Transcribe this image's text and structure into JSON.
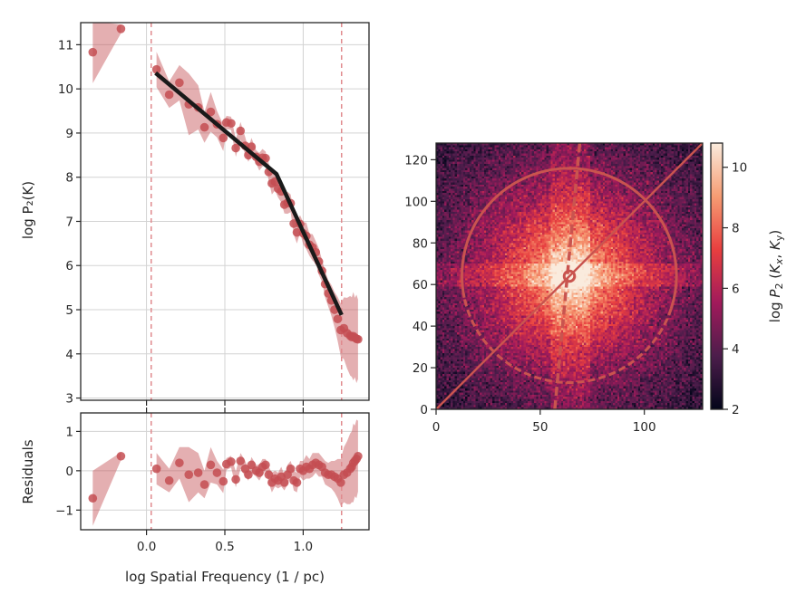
{
  "chart_data": [
    {
      "type": "line",
      "panel": "power-spectrum",
      "ylabel": "log P₂(K)",
      "xlim": [
        -0.42,
        1.42
      ],
      "ylim": [
        2.95,
        11.5
      ],
      "yticks": [
        "3",
        "4",
        "5",
        "6",
        "7",
        "8",
        "9",
        "10",
        "11"
      ],
      "grid": true,
      "vlines_dashed": [
        0.03,
        1.245
      ],
      "colors": {
        "points": "#c44e52",
        "band": "#c44e52",
        "fit": "#1a1a1a",
        "vline": "#e08a8e",
        "grid": "#d3d3d3"
      },
      "points": {
        "x": [
          -0.343,
          -0.163,
          0.064,
          0.145,
          0.21,
          0.27,
          0.33,
          0.37,
          0.41,
          0.45,
          0.49,
          0.51,
          0.54,
          0.57,
          0.6,
          0.63,
          0.65,
          0.67,
          0.7,
          0.72,
          0.74,
          0.76,
          0.78,
          0.8,
          0.82,
          0.84,
          0.86,
          0.88,
          0.9,
          0.92,
          0.94,
          0.96,
          0.98,
          1.0,
          1.02,
          1.04,
          1.06,
          1.08,
          1.1,
          1.12,
          1.14,
          1.16,
          1.18,
          1.2,
          1.22,
          1.24,
          1.26,
          1.28,
          1.3,
          1.31,
          1.32,
          1.33,
          1.34,
          1.35
        ],
        "y": [
          10.83,
          11.36,
          10.44,
          9.87,
          10.14,
          9.65,
          9.58,
          9.13,
          9.48,
          9.2,
          8.89,
          9.24,
          9.22,
          8.66,
          9.05,
          8.71,
          8.5,
          8.69,
          8.46,
          8.35,
          8.44,
          8.43,
          8.12,
          7.86,
          7.9,
          7.74,
          7.68,
          7.38,
          7.42,
          7.41,
          6.95,
          6.75,
          6.94,
          6.73,
          6.67,
          6.47,
          6.41,
          6.3,
          6.09,
          5.88,
          5.58,
          5.37,
          5.21,
          5.0,
          4.79,
          4.54,
          4.58,
          4.47,
          4.41,
          4.38,
          4.4,
          4.37,
          4.34,
          4.33
        ],
        "err": [
          0.7,
          0.1,
          0.4,
          0.3,
          0.4,
          0.7,
          0.5,
          0.35,
          0.45,
          0.3,
          0.3,
          0.15,
          0.15,
          0.2,
          0.2,
          0.2,
          0.15,
          0.2,
          0.15,
          0.2,
          0.2,
          0.15,
          0.2,
          0.25,
          0.2,
          0.2,
          0.25,
          0.2,
          0.25,
          0.2,
          0.25,
          0.25,
          0.2,
          0.25,
          0.3,
          0.25,
          0.3,
          0.25,
          0.3,
          0.25,
          0.3,
          0.3,
          0.35,
          0.4,
          0.5,
          0.6,
          0.7,
          0.8,
          0.9,
          0.9,
          1.0,
          0.9,
          1.0,
          0.9
        ]
      },
      "fit": {
        "x": [
          0.058,
          0.83,
          1.245
        ],
        "y": [
          10.36,
          8.07,
          4.88
        ]
      }
    },
    {
      "type": "scatter",
      "panel": "residuals",
      "ylabel": "Residuals",
      "xlabel": "log Spatial Frequency (1 / pc)",
      "xlim": [
        -0.42,
        1.42
      ],
      "ylim": [
        -1.5,
        1.47
      ],
      "xticks": [
        "0.0",
        "0.5",
        "1.0"
      ],
      "xtick_values": [
        0.0,
        0.5,
        1.0
      ],
      "yticks": [
        "−1",
        "0",
        "1"
      ],
      "ytick_values": [
        -1,
        0,
        1
      ],
      "grid": true,
      "residuals": [
        -0.7,
        0.37,
        0.05,
        -0.25,
        0.2,
        -0.1,
        -0.05,
        -0.35,
        0.15,
        -0.05,
        -0.27,
        0.17,
        0.23,
        -0.22,
        0.25,
        0.05,
        -0.1,
        0.15,
        0.0,
        -0.05,
        0.1,
        0.15,
        -0.1,
        -0.3,
        -0.2,
        -0.25,
        -0.15,
        -0.3,
        -0.1,
        0.05,
        -0.25,
        -0.3,
        0.05,
        0.0,
        0.1,
        0.05,
        0.15,
        0.2,
        0.15,
        0.1,
        -0.05,
        -0.1,
        -0.1,
        -0.15,
        -0.2,
        -0.3,
        -0.1,
        -0.05,
        0.05,
        0.1,
        0.2,
        0.25,
        0.3,
        0.37
      ]
    },
    {
      "type": "heatmap",
      "panel": "2d-power-spectrum",
      "xlim": [
        0,
        128
      ],
      "ylim": [
        0,
        128
      ],
      "xticks": [
        "0",
        "50",
        "100"
      ],
      "xtick_values": [
        0,
        50,
        100
      ],
      "yticks": [
        "0",
        "20",
        "40",
        "60",
        "80",
        "100",
        "120"
      ],
      "ytick_values": [
        0,
        20,
        40,
        60,
        80,
        100,
        120
      ],
      "colormap": "rocket",
      "colorbar": {
        "range": [
          2,
          10.8
        ],
        "ticks": [
          "2",
          "4",
          "6",
          "8",
          "10"
        ],
        "tick_values": [
          2,
          4,
          6,
          8,
          10
        ],
        "label_parts": [
          {
            "t": "log "
          },
          {
            "t": "P",
            "i": true
          },
          {
            "t": "2",
            "sub": true
          },
          {
            "t": " (",
            "i": false
          },
          {
            "t": "K",
            "i": true
          },
          {
            "t": "x",
            "sub": true,
            "i": true
          },
          {
            "t": ",  "
          },
          {
            "t": "K",
            "i": true
          },
          {
            "t": "y",
            "sub": true
          },
          {
            "t": ")"
          }
        ]
      },
      "overlays": {
        "color": "#c9544f",
        "circle": {
          "center": [
            64,
            64
          ],
          "radius": 51.5
        },
        "diagonal": {
          "from": [
            0,
            0
          ],
          "to": [
            128,
            128
          ]
        },
        "dashed_line": {
          "from": [
            57,
            0
          ],
          "to": [
            69,
            128
          ]
        },
        "center_marker": {
          "center": [
            64,
            64
          ],
          "radius": 2.5
        }
      }
    }
  ]
}
